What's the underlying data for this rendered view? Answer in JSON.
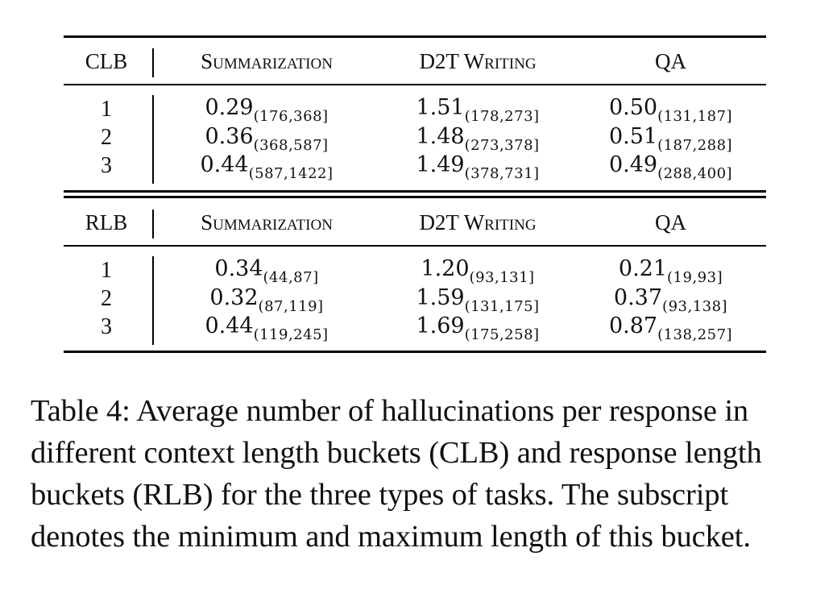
{
  "tables": [
    {
      "bucket_label": "CLB",
      "columns": [
        "Summarization",
        "D2T Writing",
        "QA"
      ],
      "rows": [
        {
          "label": "1",
          "cells": [
            {
              "value": "0.29",
              "range": "(176,368]"
            },
            {
              "value": "1.51",
              "range": "(178,273]"
            },
            {
              "value": "0.50",
              "range": "(131,187]"
            }
          ]
        },
        {
          "label": "2",
          "cells": [
            {
              "value": "0.36",
              "range": "(368,587]"
            },
            {
              "value": "1.48",
              "range": "(273,378]"
            },
            {
              "value": "0.51",
              "range": "(187,288]"
            }
          ]
        },
        {
          "label": "3",
          "cells": [
            {
              "value": "0.44",
              "range": "(587,1422]"
            },
            {
              "value": "1.49",
              "range": "(378,731]"
            },
            {
              "value": "0.49",
              "range": "(288,400]"
            }
          ]
        }
      ]
    },
    {
      "bucket_label": "RLB",
      "columns": [
        "Summarization",
        "D2T Writing",
        "QA"
      ],
      "rows": [
        {
          "label": "1",
          "cells": [
            {
              "value": "0.34",
              "range": "(44,87]"
            },
            {
              "value": "1.20",
              "range": "(93,131]"
            },
            {
              "value": "0.21",
              "range": "(19,93]"
            }
          ]
        },
        {
          "label": "2",
          "cells": [
            {
              "value": "0.32",
              "range": "(87,119]"
            },
            {
              "value": "1.59",
              "range": "(131,175]"
            },
            {
              "value": "0.37",
              "range": "(93,138]"
            }
          ]
        },
        {
          "label": "3",
          "cells": [
            {
              "value": "0.44",
              "range": "(119,245]"
            },
            {
              "value": "1.69",
              "range": "(175,258]"
            },
            {
              "value": "0.87",
              "range": "(138,257]"
            }
          ]
        }
      ]
    }
  ],
  "caption": "Table 4: Average number of hallucinations per response in different context length buckets (CLB) and response length buckets (RLB) for the three types of tasks. The subscript denotes the minimum and maximum length of this bucket."
}
